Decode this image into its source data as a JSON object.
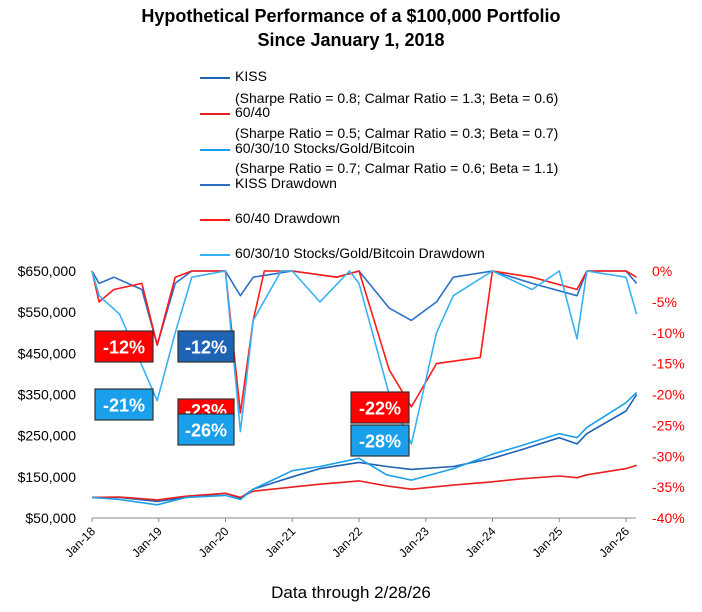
{
  "colors": {
    "kiss": "#1f63b4",
    "sixty_forty": "#e82020",
    "btc": "#1aa0ea",
    "kiss_dd": "#2a6fc4",
    "sixty_forty_dd": "#ff1a1a",
    "btc_dd": "#35b2f5"
  },
  "chart_data": {
    "type": "line",
    "title": "Hypothetical Performance of a $100,000 Portfolio",
    "subtitle": "Since January 1, 2018",
    "x_ticks": [
      "Jan-18",
      "Jan-19",
      "Jan-20",
      "Jan-21",
      "Jan-22",
      "Jan-23",
      "Jan-24",
      "Jan-25",
      "Jan-26"
    ],
    "left_axis": {
      "ticks": [
        "$50,000",
        "$150,000",
        "$250,000",
        "$350,000",
        "$450,000",
        "$550,000",
        "$650,000"
      ],
      "ylim": [
        50000,
        650000
      ]
    },
    "right_axis": {
      "ticks": [
        "0%",
        "-5%",
        "-10%",
        "-15%",
        "-20%",
        "-25%",
        "-30%",
        "-35%",
        "-40%"
      ],
      "ylim": [
        -40,
        0
      ]
    },
    "legend": [
      {
        "label": "KISS",
        "note": "(Sharpe Ratio = 0.8; Calmar Ratio = 1.3; Beta = 0.6)"
      },
      {
        "label": "60/40",
        "note": "(Sharpe Ratio = 0.5; Calmar Ratio = 0.3; Beta = 0.7)"
      },
      {
        "label": "60/30/10 Stocks/Gold/Bitcoin",
        "note": "(Sharpe Ratio = 0.7; Calmar Ratio = 0.6; Beta = 1.1)"
      },
      {
        "label": "KISS Drawdown",
        "note": ""
      },
      {
        "label": "60/40 Drawdown",
        "note": ""
      },
      {
        "label": "60/30/10 Stocks/Gold/Bitcoin Drawdown",
        "note": ""
      }
    ],
    "series": [
      {
        "name": "KISS",
        "axis": "left",
        "x": [
          "2018-01-01",
          "2018-06-01",
          "2018-12-24",
          "2019-06-01",
          "2020-01-01",
          "2020-03-23",
          "2020-06-01",
          "2021-01-01",
          "2021-06-01",
          "2022-01-01",
          "2022-06-01",
          "2022-10-15",
          "2023-06-01",
          "2024-01-01",
          "2024-06-01",
          "2025-01-01",
          "2025-04-08",
          "2025-06-01",
          "2026-01-01",
          "2026-02-28"
        ],
        "y": [
          100000,
          100000,
          90000,
          100000,
          110000,
          98000,
          120000,
          150000,
          170000,
          185000,
          175000,
          168000,
          175000,
          195000,
          215000,
          245000,
          230000,
          255000,
          310000,
          350000
        ]
      },
      {
        "name": "60/40",
        "axis": "left",
        "x": [
          "2018-01-01",
          "2018-06-01",
          "2018-12-24",
          "2019-06-01",
          "2020-01-01",
          "2020-03-23",
          "2020-06-01",
          "2021-01-01",
          "2021-06-01",
          "2022-01-01",
          "2022-06-01",
          "2022-10-15",
          "2023-06-01",
          "2024-01-01",
          "2024-06-01",
          "2025-01-01",
          "2025-04-08",
          "2025-06-01",
          "2026-01-01",
          "2026-02-28"
        ],
        "y": [
          100000,
          101000,
          94000,
          103000,
          110000,
          100000,
          115000,
          125000,
          132000,
          140000,
          128000,
          120000,
          130000,
          138000,
          145000,
          152000,
          148000,
          155000,
          170000,
          178000
        ]
      },
      {
        "name": "60/30/10 Stocks/Gold/Bitcoin",
        "axis": "left",
        "x": [
          "2018-01-01",
          "2018-06-01",
          "2018-12-24",
          "2019-06-01",
          "2020-01-01",
          "2020-03-23",
          "2020-06-01",
          "2021-01-01",
          "2021-06-01",
          "2022-01-01",
          "2022-06-01",
          "2022-10-15",
          "2023-06-01",
          "2024-01-01",
          "2024-06-01",
          "2025-01-01",
          "2025-04-08",
          "2025-06-01",
          "2026-01-01",
          "2026-02-28"
        ],
        "y": [
          100000,
          95000,
          82000,
          100000,
          105000,
          95000,
          120000,
          165000,
          175000,
          195000,
          155000,
          142000,
          170000,
          205000,
          225000,
          255000,
          245000,
          270000,
          330000,
          355000
        ]
      },
      {
        "name": "KISS Drawdown",
        "axis": "right",
        "x": [
          "2018-01-01",
          "2018-02-09",
          "2018-05-01",
          "2018-10-01",
          "2018-12-24",
          "2019-04-01",
          "2019-07-01",
          "2020-01-01",
          "2020-03-23",
          "2020-06-01",
          "2021-01-01",
          "2021-09-01",
          "2022-01-01",
          "2022-06-15",
          "2022-10-15",
          "2023-03-01",
          "2023-06-01",
          "2024-01-01",
          "2024-08-05",
          "2025-04-08",
          "2025-06-01",
          "2026-01-01",
          "2026-02-28"
        ],
        "y": [
          0,
          -2,
          -1,
          -3,
          -12,
          -2,
          0,
          0,
          -4,
          -1,
          0,
          -1,
          0,
          -6,
          -8,
          -5,
          -1,
          0,
          -2,
          -4,
          0,
          0,
          -2
        ]
      },
      {
        "name": "60/40 Drawdown",
        "axis": "right",
        "x": [
          "2018-01-01",
          "2018-02-09",
          "2018-05-01",
          "2018-10-01",
          "2018-12-24",
          "2019-04-01",
          "2019-07-01",
          "2020-01-01",
          "2020-03-23",
          "2020-06-01",
          "2020-08-01",
          "2021-01-01",
          "2021-09-01",
          "2022-01-01",
          "2022-06-15",
          "2022-10-15",
          "2023-03-01",
          "2023-10-27",
          "2024-01-01",
          "2024-08-05",
          "2025-04-08",
          "2025-06-01",
          "2026-01-01",
          "2026-02-28"
        ],
        "y": [
          0,
          -5,
          -3,
          -2,
          -12,
          -1,
          0,
          0,
          -23,
          -8,
          0,
          0,
          -1,
          0,
          -16,
          -22,
          -15,
          -14,
          0,
          -1,
          -3,
          0,
          0,
          -1
        ]
      },
      {
        "name": "60/30/10 Stocks/Gold/Bitcoin Drawdown",
        "axis": "right",
        "x": [
          "2018-01-01",
          "2018-02-09",
          "2018-06-01",
          "2018-12-24",
          "2019-04-01",
          "2019-07-01",
          "2020-01-01",
          "2020-03-23",
          "2020-06-01",
          "2020-11-01",
          "2021-01-01",
          "2021-06-01",
          "2021-11-10",
          "2022-01-01",
          "2022-06-15",
          "2022-10-15",
          "2023-03-01",
          "2023-06-01",
          "2024-01-01",
          "2024-08-05",
          "2025-01-01",
          "2025-04-08",
          "2025-06-01",
          "2026-01-01",
          "2026-02-28"
        ],
        "y": [
          0,
          -4,
          -7,
          -21,
          -10,
          -1,
          0,
          -26,
          -8,
          0,
          0,
          -5,
          0,
          -2,
          -20,
          -28,
          -10,
          -4,
          0,
          -3,
          0,
          -11,
          0,
          -1,
          -7
        ]
      }
    ],
    "annotations": [
      {
        "text": "-12%",
        "series": "60/40 Drawdown",
        "color": "#ff0000"
      },
      {
        "text": "-12%",
        "series": "KISS Drawdown",
        "color": "#1f63b4"
      },
      {
        "text": "-21%",
        "series": "60/30/10 Stocks/Gold/Bitcoin Drawdown",
        "color": "#1aa0ea"
      },
      {
        "text": "-23%",
        "series": "60/40 Drawdown",
        "color": "#ff0000"
      },
      {
        "text": "-26%",
        "series": "60/30/10 Stocks/Gold/Bitcoin Drawdown",
        "color": "#1aa0ea"
      },
      {
        "text": "-22%",
        "series": "60/40 Drawdown",
        "color": "#ff0000"
      },
      {
        "text": "-28%",
        "series": "60/30/10 Stocks/Gold/Bitcoin Drawdown",
        "color": "#1aa0ea"
      }
    ],
    "footnote": "Data through 2/28/26"
  }
}
